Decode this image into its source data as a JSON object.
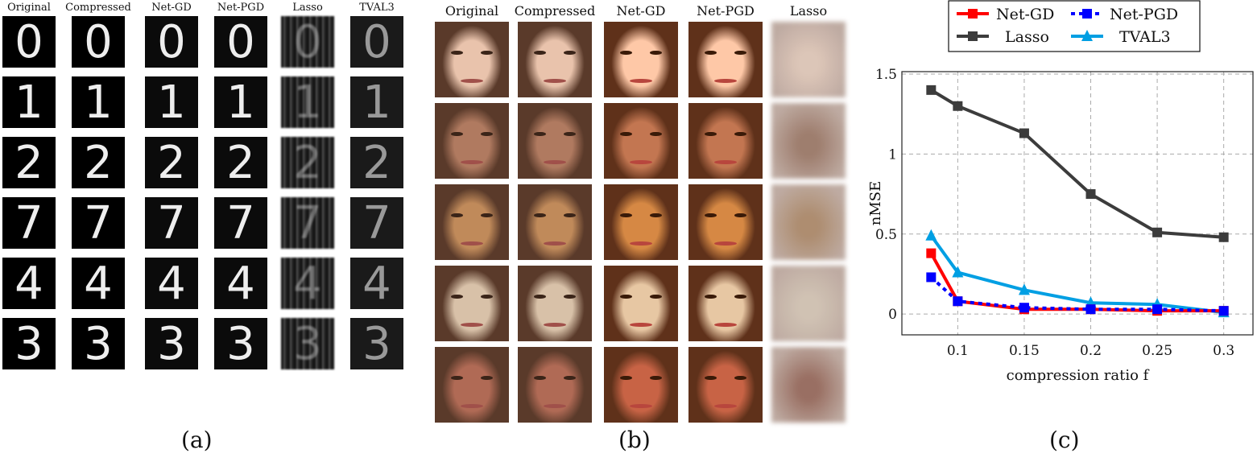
{
  "panel_a": {
    "columns": [
      "Original",
      "Compressed",
      "Net-GD",
      "Net-PGD",
      "Lasso",
      "TVAL3"
    ],
    "digits": [
      "0",
      "1",
      "2",
      "7",
      "4",
      "3"
    ],
    "caption": "(a)"
  },
  "panel_b": {
    "columns": [
      "Original",
      "Compressed",
      "Net-GD",
      "Net-PGD",
      "Lasso"
    ],
    "row_tones": [
      "#e9c3ac",
      "#b07a60",
      "#c08a5a",
      "#d8c1a8",
      "#b06a55"
    ],
    "caption": "(b)"
  },
  "panel_c": {
    "caption": "(c)",
    "chart_data": {
      "type": "line",
      "xlabel": "compression ratio f",
      "ylabel": "nMSE",
      "x": [
        0.08,
        0.1,
        0.15,
        0.2,
        0.25,
        0.3
      ],
      "xticks": [
        "0.1",
        "0.15",
        "0.2",
        "0.25",
        "0.3"
      ],
      "yticks": [
        "0",
        "0.5",
        "1",
        "1.5"
      ],
      "xlim": [
        0.058,
        0.322
      ],
      "ylim": [
        -0.13,
        1.515
      ],
      "grid": true,
      "legend_position": "top-outside",
      "series": [
        {
          "name": "Net-GD",
          "color": "#ff0000",
          "marker": "square",
          "dash": false,
          "values": [
            0.38,
            0.08,
            0.03,
            0.03,
            0.02,
            0.02
          ]
        },
        {
          "name": "Net-PGD",
          "color": "#0000ff",
          "marker": "square",
          "dash": true,
          "values": [
            0.23,
            0.08,
            0.04,
            0.03,
            0.03,
            0.02
          ]
        },
        {
          "name": "Lasso",
          "color": "#3c3c3c",
          "marker": "square",
          "dash": false,
          "values": [
            1.4,
            1.3,
            1.13,
            0.75,
            0.51,
            0.48
          ]
        },
        {
          "name": "TVAL3",
          "color": "#009fe3",
          "marker": "triangle",
          "dash": false,
          "values": [
            0.49,
            0.26,
            0.15,
            0.07,
            0.06,
            0.01
          ]
        }
      ]
    }
  }
}
